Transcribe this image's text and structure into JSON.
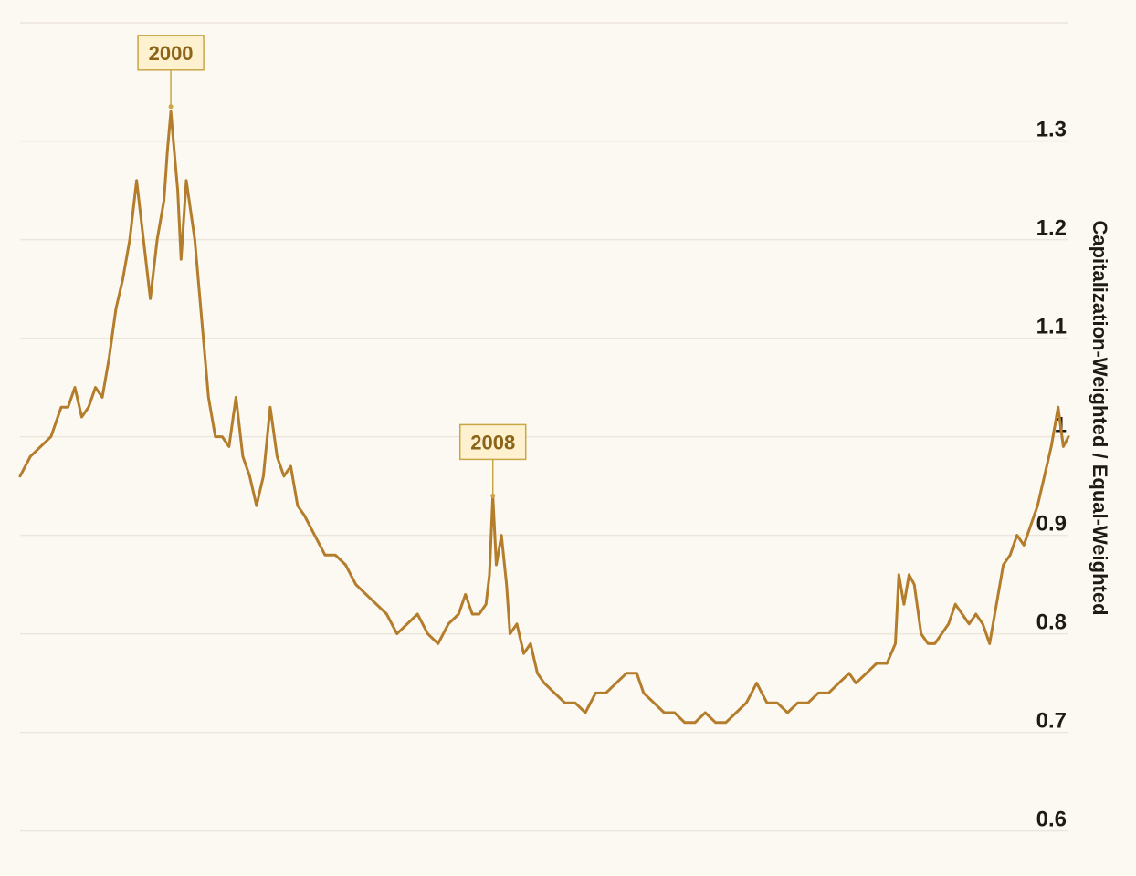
{
  "chart_data": {
    "type": "line",
    "title": "",
    "xlabel": "",
    "ylabel": "Capitalization-Weighted / Equal-Weighted",
    "ylim": [
      0.57,
      1.42
    ],
    "xlim": [
      1995.7,
      2026.3
    ],
    "yticks": [
      {
        "value": 0.6,
        "label": "0.6"
      },
      {
        "value": 0.7,
        "label": "0.7"
      },
      {
        "value": 0.8,
        "label": "0.8"
      },
      {
        "value": 0.9,
        "label": "0.9"
      },
      {
        "value": 1.0,
        "label": "1"
      },
      {
        "value": 1.1,
        "label": "1.1"
      },
      {
        "value": 1.2,
        "label": "1.2"
      },
      {
        "value": 1.3,
        "label": "1.3"
      }
    ],
    "grid": true,
    "line_color": "#b47d2c",
    "series": [
      {
        "name": "",
        "points": [
          [
            1995.7,
            0.96
          ],
          [
            1996.0,
            0.98
          ],
          [
            1996.3,
            0.99
          ],
          [
            1996.6,
            1.0
          ],
          [
            1996.9,
            1.03
          ],
          [
            1997.1,
            1.03
          ],
          [
            1997.3,
            1.05
          ],
          [
            1997.5,
            1.02
          ],
          [
            1997.7,
            1.03
          ],
          [
            1997.9,
            1.05
          ],
          [
            1998.1,
            1.04
          ],
          [
            1998.3,
            1.08
          ],
          [
            1998.5,
            1.13
          ],
          [
            1998.7,
            1.16
          ],
          [
            1998.9,
            1.2
          ],
          [
            1999.1,
            1.26
          ],
          [
            1999.3,
            1.2
          ],
          [
            1999.5,
            1.14
          ],
          [
            1999.7,
            1.2
          ],
          [
            1999.9,
            1.24
          ],
          [
            2000.0,
            1.29
          ],
          [
            2000.1,
            1.33
          ],
          [
            2000.2,
            1.29
          ],
          [
            2000.3,
            1.25
          ],
          [
            2000.4,
            1.18
          ],
          [
            2000.55,
            1.26
          ],
          [
            2000.8,
            1.2
          ],
          [
            2001.0,
            1.12
          ],
          [
            2001.2,
            1.04
          ],
          [
            2001.4,
            1.0
          ],
          [
            2001.6,
            1.0
          ],
          [
            2001.8,
            0.99
          ],
          [
            2002.0,
            1.04
          ],
          [
            2002.2,
            0.98
          ],
          [
            2002.4,
            0.96
          ],
          [
            2002.6,
            0.93
          ],
          [
            2002.8,
            0.96
          ],
          [
            2003.0,
            1.03
          ],
          [
            2003.2,
            0.98
          ],
          [
            2003.4,
            0.96
          ],
          [
            2003.6,
            0.97
          ],
          [
            2003.8,
            0.93
          ],
          [
            2004.0,
            0.92
          ],
          [
            2004.3,
            0.9
          ],
          [
            2004.6,
            0.88
          ],
          [
            2004.9,
            0.88
          ],
          [
            2005.2,
            0.87
          ],
          [
            2005.5,
            0.85
          ],
          [
            2005.8,
            0.84
          ],
          [
            2006.1,
            0.83
          ],
          [
            2006.4,
            0.82
          ],
          [
            2006.7,
            0.8
          ],
          [
            2007.0,
            0.81
          ],
          [
            2007.3,
            0.82
          ],
          [
            2007.6,
            0.8
          ],
          [
            2007.9,
            0.79
          ],
          [
            2008.2,
            0.81
          ],
          [
            2008.5,
            0.82
          ],
          [
            2008.7,
            0.84
          ],
          [
            2008.9,
            0.82
          ],
          [
            2009.1,
            0.82
          ],
          [
            2009.3,
            0.83
          ],
          [
            2009.4,
            0.86
          ],
          [
            2009.5,
            0.94
          ],
          [
            2009.6,
            0.87
          ],
          [
            2009.75,
            0.9
          ],
          [
            2009.9,
            0.85
          ],
          [
            2010.0,
            0.8
          ],
          [
            2010.2,
            0.81
          ],
          [
            2010.4,
            0.78
          ],
          [
            2010.6,
            0.79
          ],
          [
            2010.8,
            0.76
          ],
          [
            2011.0,
            0.75
          ],
          [
            2011.3,
            0.74
          ],
          [
            2011.6,
            0.73
          ],
          [
            2011.9,
            0.73
          ],
          [
            2012.2,
            0.72
          ],
          [
            2012.5,
            0.74
          ],
          [
            2012.8,
            0.74
          ],
          [
            2013.1,
            0.75
          ],
          [
            2013.4,
            0.76
          ],
          [
            2013.7,
            0.76
          ],
          [
            2013.9,
            0.74
          ],
          [
            2014.2,
            0.73
          ],
          [
            2014.5,
            0.72
          ],
          [
            2014.8,
            0.72
          ],
          [
            2015.1,
            0.71
          ],
          [
            2015.4,
            0.71
          ],
          [
            2015.7,
            0.72
          ],
          [
            2016.0,
            0.71
          ],
          [
            2016.3,
            0.71
          ],
          [
            2016.6,
            0.72
          ],
          [
            2016.9,
            0.73
          ],
          [
            2017.2,
            0.75
          ],
          [
            2017.5,
            0.73
          ],
          [
            2017.8,
            0.73
          ],
          [
            2018.1,
            0.72
          ],
          [
            2018.4,
            0.73
          ],
          [
            2018.7,
            0.73
          ],
          [
            2019.0,
            0.74
          ],
          [
            2019.3,
            0.74
          ],
          [
            2019.6,
            0.75
          ],
          [
            2019.9,
            0.76
          ],
          [
            2020.1,
            0.75
          ],
          [
            2020.4,
            0.76
          ],
          [
            2020.7,
            0.77
          ],
          [
            2021.0,
            0.77
          ],
          [
            2021.25,
            0.79
          ],
          [
            2021.35,
            0.86
          ],
          [
            2021.5,
            0.83
          ],
          [
            2021.65,
            0.86
          ],
          [
            2021.8,
            0.85
          ],
          [
            2022.0,
            0.8
          ],
          [
            2022.2,
            0.79
          ],
          [
            2022.4,
            0.79
          ],
          [
            2022.6,
            0.8
          ],
          [
            2022.8,
            0.81
          ],
          [
            2023.0,
            0.83
          ],
          [
            2023.2,
            0.82
          ],
          [
            2023.4,
            0.81
          ],
          [
            2023.6,
            0.82
          ],
          [
            2023.8,
            0.81
          ],
          [
            2024.0,
            0.79
          ],
          [
            2024.2,
            0.83
          ],
          [
            2024.4,
            0.87
          ],
          [
            2024.6,
            0.88
          ],
          [
            2024.8,
            0.9
          ],
          [
            2025.0,
            0.89
          ],
          [
            2025.2,
            0.91
          ],
          [
            2025.4,
            0.93
          ],
          [
            2025.6,
            0.96
          ],
          [
            2025.8,
            0.99
          ],
          [
            2026.0,
            1.03
          ],
          [
            2026.15,
            0.99
          ],
          [
            2026.3,
            1.0
          ]
        ]
      }
    ],
    "annotations": [
      {
        "label": "2000",
        "x": 2000.1,
        "y": 1.335
      },
      {
        "label": "2008",
        "x": 2009.5,
        "y": 0.94
      }
    ]
  }
}
